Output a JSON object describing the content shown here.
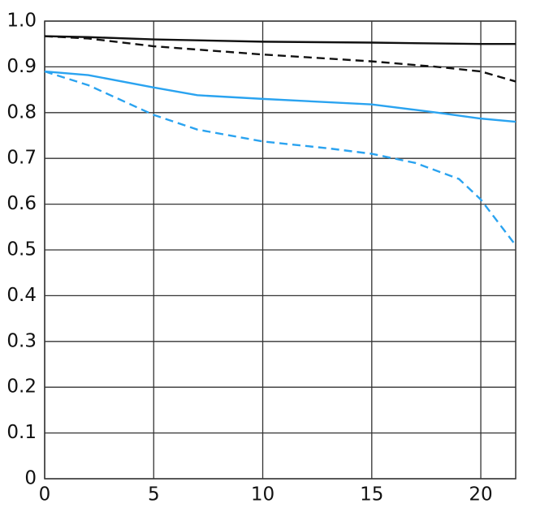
{
  "chart_data": {
    "type": "line",
    "xlim": [
      0,
      21.6
    ],
    "xticks": [
      0,
      5,
      10,
      15,
      20
    ],
    "ylim": [
      0,
      1
    ],
    "yticks": [
      0,
      0.1,
      0.2,
      0.3,
      0.4,
      0.5,
      0.6,
      0.7,
      0.8,
      0.9,
      {
        "value": 1,
        "label": "1.0"
      }
    ],
    "grid": true,
    "series": [
      {
        "color": "#111111",
        "dash": false,
        "x": [
          0,
          2,
          5,
          10,
          15,
          20,
          21.6
        ],
        "values": [
          0.967,
          0.965,
          0.96,
          0.955,
          0.953,
          0.95,
          0.95
        ]
      },
      {
        "color": "#111111",
        "dash": true,
        "x": [
          0,
          2,
          5,
          10,
          15,
          18,
          20,
          21.6
        ],
        "values": [
          0.967,
          0.962,
          0.945,
          0.927,
          0.912,
          0.9,
          0.89,
          0.868
        ]
      },
      {
        "color": "#2aa3f0",
        "dash": false,
        "x": [
          0,
          2,
          5,
          7,
          10,
          15,
          18,
          20,
          21.6
        ],
        "values": [
          0.89,
          0.882,
          0.855,
          0.838,
          0.83,
          0.818,
          0.8,
          0.787,
          0.78
        ]
      },
      {
        "color": "#2aa3f0",
        "dash": true,
        "x": [
          0,
          2,
          5,
          7,
          10,
          13,
          15,
          17,
          19,
          20,
          21.6
        ],
        "values": [
          0.89,
          0.86,
          0.795,
          0.763,
          0.737,
          0.722,
          0.71,
          0.69,
          0.655,
          0.61,
          0.51
        ]
      }
    ]
  }
}
